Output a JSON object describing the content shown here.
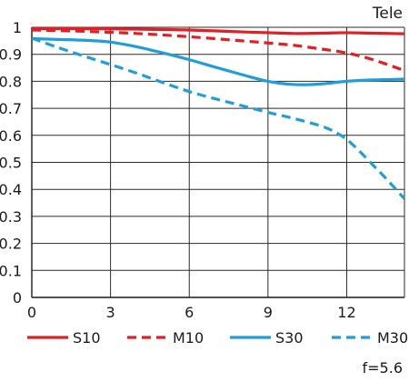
{
  "chart_data": {
    "type": "line",
    "title": "Tele",
    "footnote": "f=5.6",
    "xlabel": "",
    "ylabel": "",
    "xlim": [
      0,
      14.2
    ],
    "ylim": [
      0,
      1
    ],
    "x_ticks": [
      0,
      3,
      6,
      9,
      12
    ],
    "y_ticks": [
      0,
      0.1,
      0.2,
      0.3,
      0.4,
      0.5,
      0.6,
      0.7,
      0.8,
      0.9,
      1
    ],
    "x_tick_labels": [
      "0",
      "3",
      "6",
      "9",
      "12"
    ],
    "y_tick_labels": [
      "0",
      "0.1",
      "0.2",
      "0.3",
      "0.4",
      "0.5",
      "0.6",
      "0.7",
      "0.8",
      "0.9",
      "1"
    ],
    "grid": true,
    "legend_position": "bottom",
    "series": [
      {
        "name": "S10",
        "color": "#e31e24",
        "style": "solid",
        "x": [
          0,
          2,
          4,
          6,
          8,
          9,
          10,
          11,
          12,
          13,
          14.2
        ],
        "y": [
          0.995,
          0.995,
          0.993,
          0.99,
          0.983,
          0.98,
          0.977,
          0.978,
          0.98,
          0.978,
          0.976
        ]
      },
      {
        "name": "M10",
        "color": "#e31e24",
        "style": "dashed",
        "x": [
          0,
          2,
          4,
          6,
          8,
          9,
          10,
          11,
          12,
          13,
          14.2
        ],
        "y": [
          0.99,
          0.985,
          0.977,
          0.965,
          0.95,
          0.942,
          0.933,
          0.92,
          0.905,
          0.88,
          0.84
        ]
      },
      {
        "name": "S30",
        "color": "#1e9fdb",
        "style": "solid",
        "x": [
          0,
          1,
          2,
          3,
          4,
          5,
          6,
          7,
          8,
          9,
          10,
          11,
          12,
          13,
          14.2
        ],
        "y": [
          0.958,
          0.955,
          0.952,
          0.945,
          0.928,
          0.905,
          0.88,
          0.852,
          0.825,
          0.8,
          0.788,
          0.79,
          0.8,
          0.805,
          0.808
        ]
      },
      {
        "name": "M30",
        "color": "#1e9fdb",
        "style": "dashed",
        "x": [
          0,
          1,
          2,
          3,
          4,
          5,
          6,
          7,
          8,
          9,
          10,
          11,
          11.5,
          12,
          12.5,
          13,
          13.5,
          14.2
        ],
        "y": [
          0.96,
          0.925,
          0.893,
          0.862,
          0.83,
          0.795,
          0.762,
          0.735,
          0.71,
          0.685,
          0.662,
          0.635,
          0.615,
          0.585,
          0.54,
          0.49,
          0.44,
          0.365
        ]
      }
    ]
  }
}
